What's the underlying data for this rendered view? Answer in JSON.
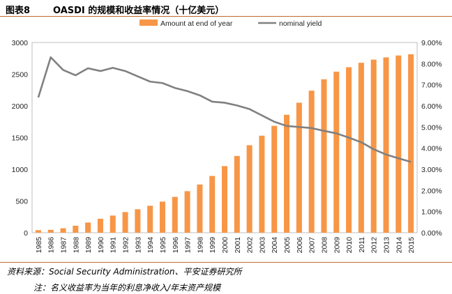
{
  "header": {
    "figure_label": "图表8",
    "title": "OASDI 的规模和收益率情况（十亿美元）"
  },
  "colors": {
    "bar": "#F79646",
    "line": "#808080",
    "rule": "#C06A2B"
  },
  "chart_data": {
    "type": "bar+line",
    "categories": [
      "1985",
      "1986",
      "1987",
      "1988",
      "1989",
      "1990",
      "1991",
      "1992",
      "1993",
      "1994",
      "1995",
      "1996",
      "1997",
      "1998",
      "1999",
      "2000",
      "2001",
      "2002",
      "2003",
      "2004",
      "2005",
      "2006",
      "2007",
      "2008",
      "2009",
      "2010",
      "2011",
      "2012",
      "2013",
      "2014",
      "2015"
    ],
    "series": [
      {
        "name": "Amount at end of year",
        "type": "bar",
        "axis": "left",
        "values": [
          40,
          45,
          70,
          110,
          160,
          220,
          270,
          325,
          370,
          425,
          490,
          565,
          655,
          760,
          895,
          1050,
          1210,
          1380,
          1530,
          1685,
          1860,
          2050,
          2240,
          2420,
          2540,
          2610,
          2680,
          2730,
          2765,
          2795,
          2815
        ]
      },
      {
        "name": "nominal yield",
        "type": "line",
        "axis": "right",
        "values": [
          6.4,
          8.3,
          7.7,
          7.45,
          7.78,
          7.65,
          7.8,
          7.65,
          7.4,
          7.15,
          7.08,
          6.85,
          6.7,
          6.5,
          6.2,
          6.15,
          6.02,
          5.85,
          5.55,
          5.25,
          5.05,
          5.0,
          4.95,
          4.82,
          4.7,
          4.5,
          4.28,
          3.95,
          3.7,
          3.52,
          3.35
        ]
      }
    ],
    "yleft": {
      "lim": [
        0,
        3000
      ],
      "ticks": [
        "0",
        "500",
        "1000",
        "1500",
        "2000",
        "2500",
        "3000"
      ]
    },
    "yright": {
      "lim": [
        0,
        9
      ],
      "ticks": [
        "0.00%",
        "1.00%",
        "2.00%",
        "3.00%",
        "4.00%",
        "5.00%",
        "6.00%",
        "7.00%",
        "8.00%",
        "9.00%"
      ]
    },
    "legend_position": "top"
  },
  "footer": {
    "source": "资料来源：Social Security Administration、平安证券研究所",
    "note": "注：名义收益率为当年的利息净收入/年末资产规模"
  }
}
